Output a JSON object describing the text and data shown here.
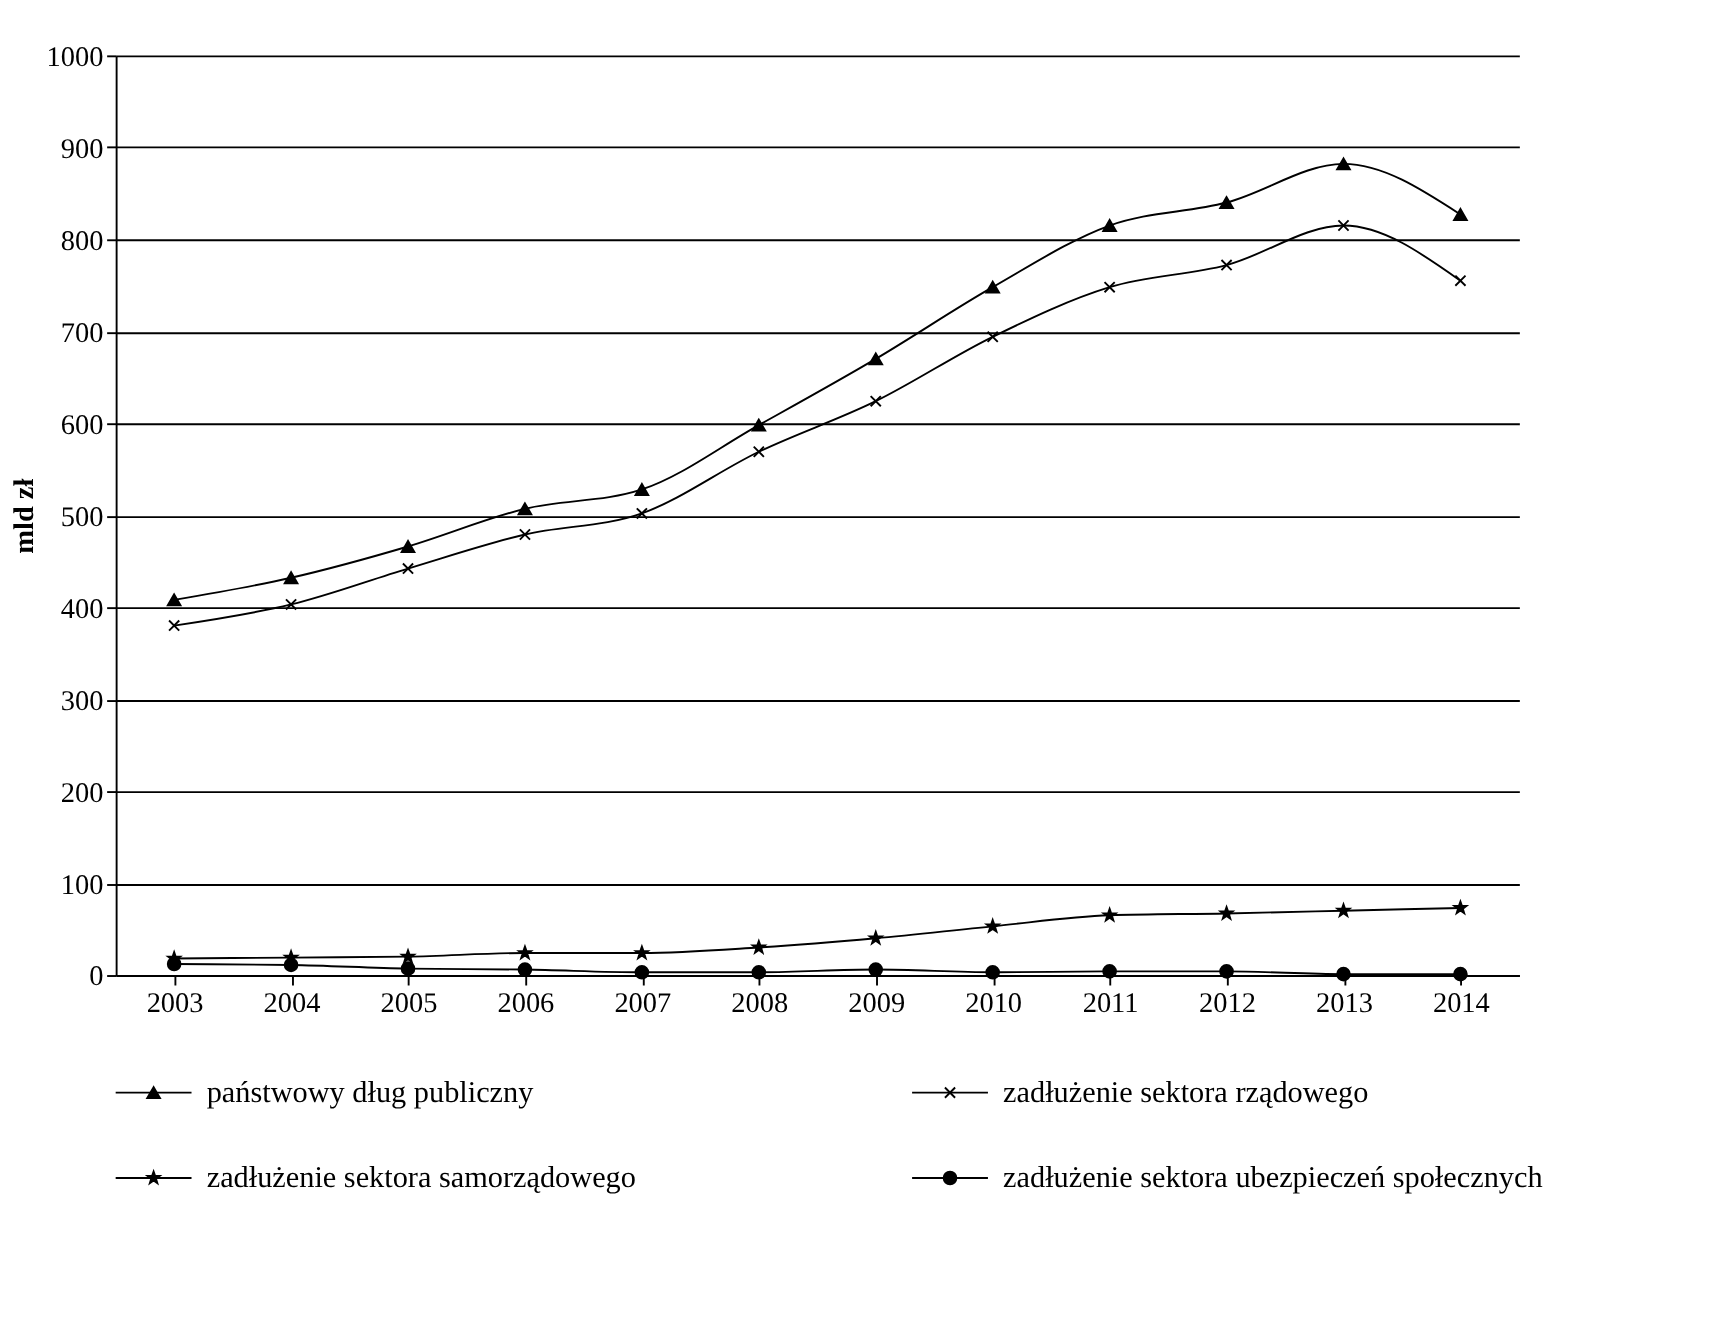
{
  "chart_data": {
    "type": "line",
    "ylabel": "mld zł",
    "categories": [
      "2003",
      "2004",
      "2005",
      "2006",
      "2007",
      "2008",
      "2009",
      "2010",
      "2011",
      "2012",
      "2013",
      "2014"
    ],
    "series": [
      {
        "name": "państwowy dług publiczny",
        "color": "#000000",
        "marker": "triangle",
        "values": [
          408,
          432,
          466,
          507,
          528,
          598,
          670,
          748,
          815,
          840,
          882,
          827
        ]
      },
      {
        "name": "zadłużenie sektora rządowego",
        "color": "#000000",
        "marker": "cross",
        "values": [
          380,
          403,
          442,
          479,
          502,
          569,
          624,
          694,
          748,
          772,
          815,
          755
        ]
      },
      {
        "name": "zadłużenie sektora samorządowego",
        "color": "#000000",
        "marker": "star",
        "values": [
          18,
          19,
          20,
          24,
          24,
          30,
          40,
          53,
          65,
          67,
          70,
          73
        ]
      },
      {
        "name": "zadłużenie sektora ubezpieczeń społecznych",
        "color": "#000000",
        "marker": "circle",
        "values": [
          12,
          11,
          7,
          6,
          3,
          3,
          6,
          3,
          4,
          4,
          1,
          1
        ]
      }
    ],
    "ylim": [
      0,
      1000
    ],
    "yticks": [
      0,
      100,
      200,
      300,
      400,
      500,
      600,
      700,
      800,
      900,
      1000
    ],
    "grid": "y",
    "legend": "bottom"
  }
}
